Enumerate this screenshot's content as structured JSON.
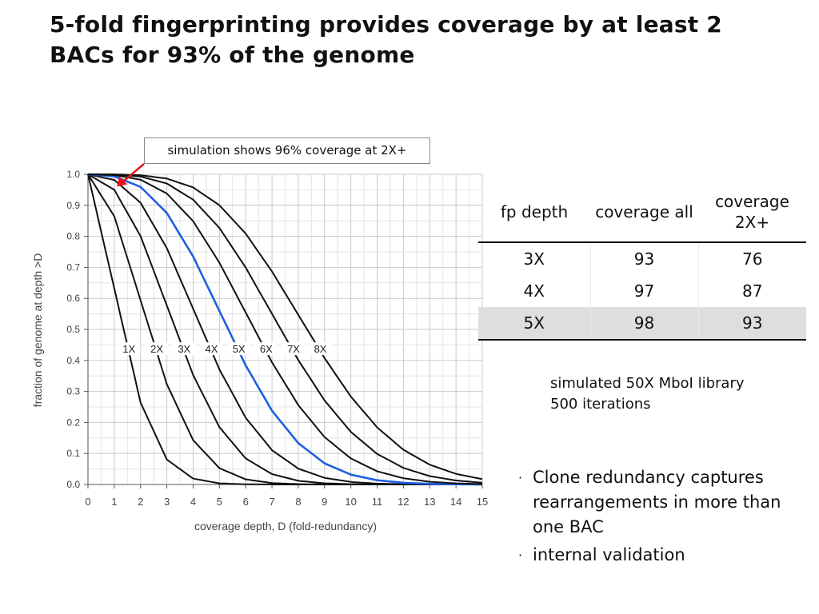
{
  "title": "5-fold fingerprinting provides coverage by at least 2 BACs for 93% of the genome",
  "callout": "simulation shows 96% coverage at 2X+",
  "table": {
    "headers": [
      "fp depth",
      "coverage all",
      "coverage 2X+"
    ],
    "rows": [
      [
        "3X",
        "93",
        "76"
      ],
      [
        "4X",
        "97",
        "87"
      ],
      [
        "5X",
        "98",
        "93"
      ]
    ],
    "highlight_row": 2
  },
  "note": {
    "line1": "simulated 50X MboI library",
    "line2": "500 iterations"
  },
  "bullets": [
    "Clone redundancy captures rearrangements in more than one BAC",
    "internal validation"
  ],
  "bullet_marker": "·",
  "chart_data": {
    "type": "line",
    "xlabel": "coverage depth, D (fold-redundancy)",
    "ylabel": "fraction of genome at depth >D",
    "xlim": [
      0,
      15
    ],
    "ylim": [
      0,
      1.0
    ],
    "x_ticks": [
      0,
      1,
      2,
      3,
      4,
      5,
      6,
      7,
      8,
      9,
      10,
      11,
      12,
      13,
      14,
      15
    ],
    "y_ticks": [
      0.0,
      0.1,
      0.2,
      0.3,
      0.4,
      0.5,
      0.6,
      0.7,
      0.8,
      0.9,
      1.0
    ],
    "grid": true,
    "highlight_color": "#1f5fe0",
    "line_color": "#111111",
    "series": [
      {
        "name": "1X",
        "curve_parameter": 1,
        "highlight": false
      },
      {
        "name": "2X",
        "curve_parameter": 2,
        "highlight": false
      },
      {
        "name": "3X",
        "curve_parameter": 3,
        "highlight": false
      },
      {
        "name": "4X",
        "curve_parameter": 4,
        "highlight": false
      },
      {
        "name": "5X",
        "curve_parameter": 5,
        "highlight": true
      },
      {
        "name": "6X",
        "curve_parameter": 6,
        "highlight": false
      },
      {
        "name": "7X",
        "curve_parameter": 7,
        "highlight": false
      },
      {
        "name": "8X",
        "curve_parameter": 8,
        "highlight": false
      }
    ],
    "series_label_y": 0.43,
    "arrow_color": "#e8141b",
    "arrow_target": {
      "x": 1.1,
      "y": 0.96
    }
  }
}
